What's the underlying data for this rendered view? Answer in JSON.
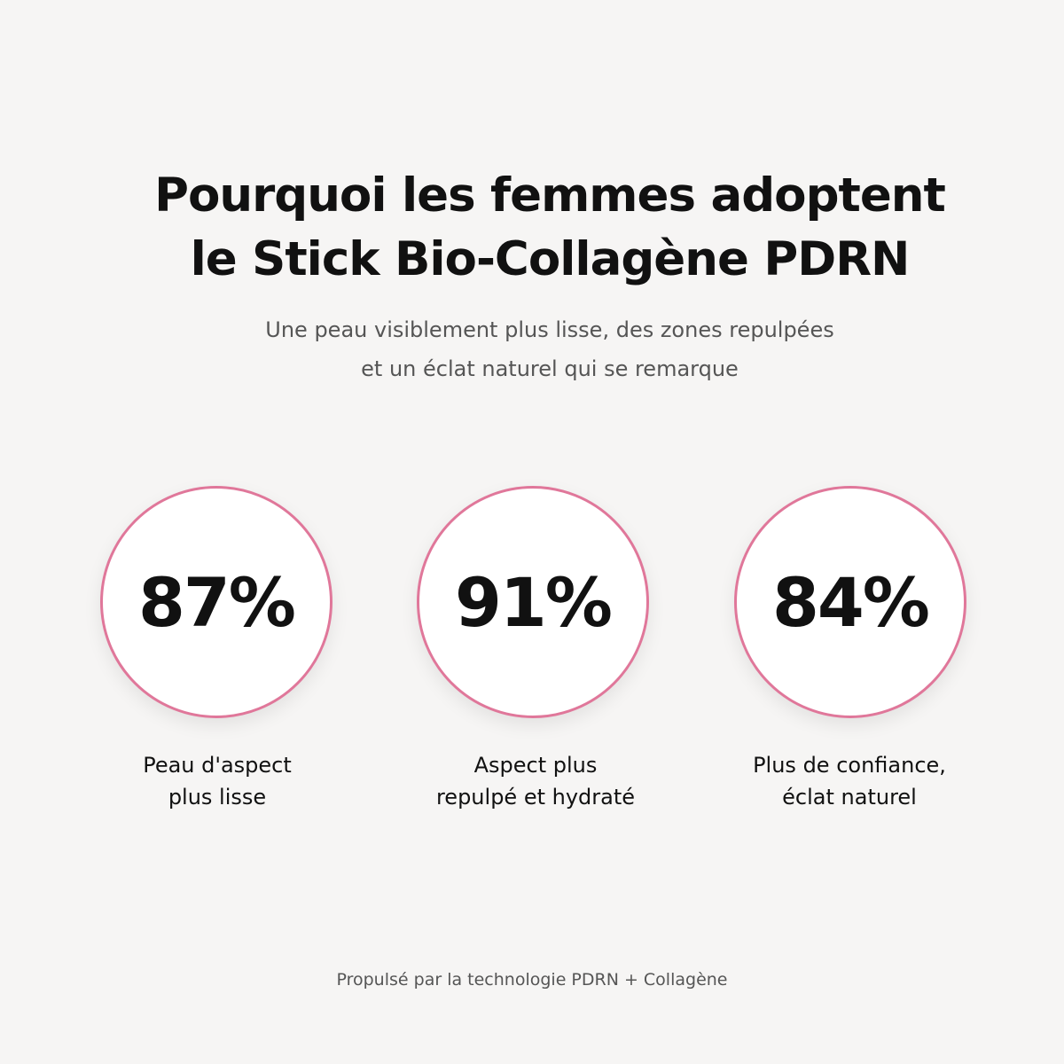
{
  "header": {
    "title_lines": [
      "Pourquoi les femmes adoptent",
      "le Stick Bio-Collagène PDRN"
    ],
    "subtitle_lines": [
      "Une peau visiblement plus lisse, des zones repulpées",
      "et un éclat naturel qui se remarque"
    ]
  },
  "stats": [
    {
      "value": "87%",
      "label_lines": [
        "Peau d'aspect",
        "plus lisse"
      ]
    },
    {
      "value": "91%",
      "label_lines": [
        "Aspect plus",
        "repulpé et hydraté"
      ]
    },
    {
      "value": "84%",
      "label_lines": [
        "Plus de confiance,",
        "éclat naturel"
      ]
    }
  ],
  "footer": "Propulsé par la technologie PDRN + Collagène"
}
